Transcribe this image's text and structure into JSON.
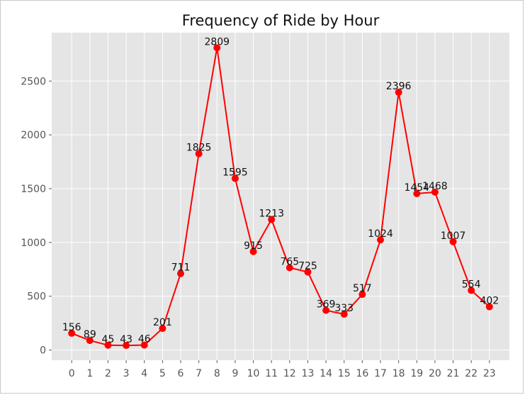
{
  "chart_data": {
    "type": "line",
    "title": "Frequency of Ride by Hour",
    "xlabel": "",
    "ylabel": "",
    "categories": [
      "0",
      "1",
      "2",
      "3",
      "4",
      "5",
      "6",
      "7",
      "8",
      "9",
      "10",
      "11",
      "12",
      "13",
      "14",
      "15",
      "16",
      "17",
      "18",
      "19",
      "20",
      "21",
      "22",
      "23"
    ],
    "series": [
      {
        "values": [
          156,
          89,
          45,
          43,
          46,
          201,
          711,
          1825,
          2809,
          1595,
          915,
          1213,
          765,
          725,
          369,
          333,
          517,
          1024,
          2396,
          1454,
          1468,
          1007,
          554,
          402
        ],
        "labels": [
          "156",
          "89",
          "45",
          "43",
          "46",
          "201",
          "711",
          "1825",
          "2809",
          "1595",
          "915",
          "1213",
          "765",
          "725",
          "369",
          "333",
          "517",
          "1024",
          "2396",
          "1454",
          "1468",
          "1007",
          "554",
          "402"
        ],
        "color": "#ff0000",
        "marker": "circle"
      }
    ],
    "x_range": [
      -1.1,
      24.1
    ],
    "ylim": [
      -95,
      2950
    ],
    "yticks": [
      0,
      500,
      1000,
      1500,
      2000,
      2500
    ],
    "ytick_labels": [
      "0",
      "500",
      "1000",
      "1500",
      "2000",
      "2500"
    ],
    "grid": true,
    "style": "ggplot",
    "plot_background": "#e5e5e5",
    "grid_color": "#ffffff",
    "legend": "none"
  }
}
